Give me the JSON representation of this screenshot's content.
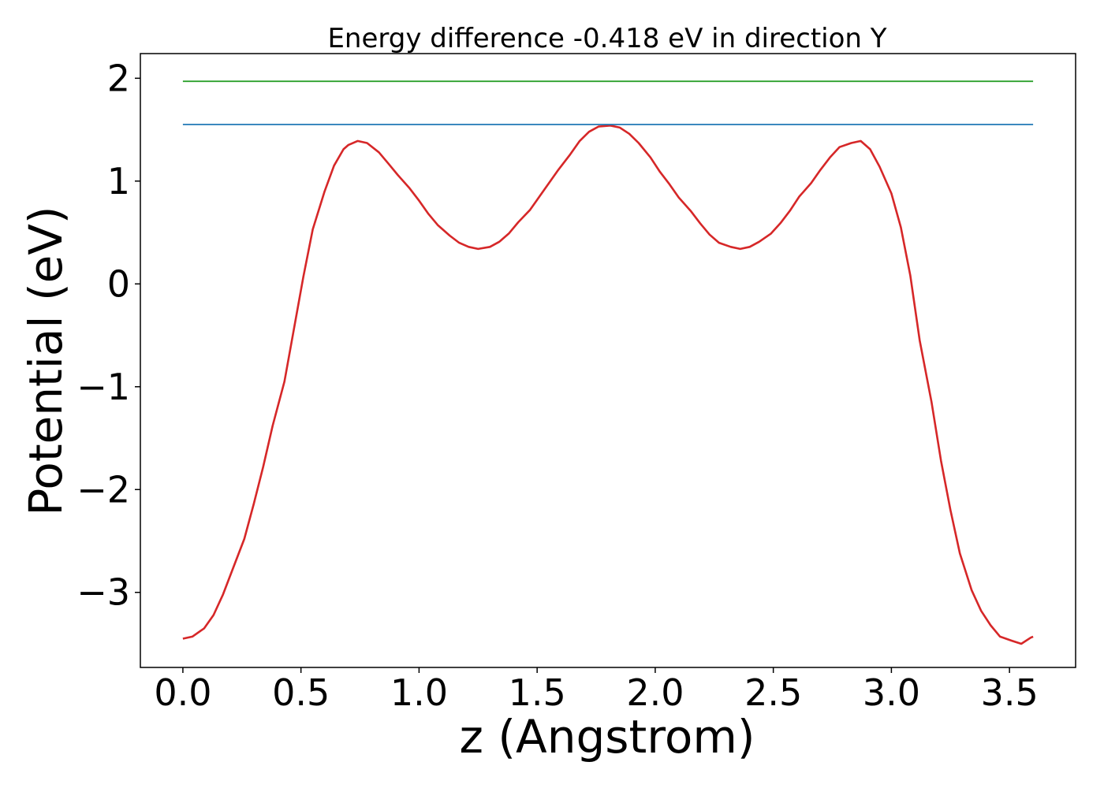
{
  "chart_data": {
    "type": "line",
    "title": "Energy difference -0.418 eV in direction Y",
    "xlabel": "z (Angstrom)",
    "ylabel": "Potential (eV)",
    "xlim": [
      -0.18,
      3.78
    ],
    "ylim": [
      -3.73,
      2.24
    ],
    "x_ticks": [
      0.0,
      0.5,
      1.0,
      1.5,
      2.0,
      2.5,
      3.0,
      3.5
    ],
    "x_tick_labels": [
      "0.0",
      "0.5",
      "1.0",
      "1.5",
      "2.0",
      "2.5",
      "3.0",
      "3.5"
    ],
    "y_ticks": [
      -3,
      -2,
      -1,
      0,
      1,
      2
    ],
    "y_tick_labels": [
      "−3",
      "−2",
      "−1",
      "0",
      "1",
      "2"
    ],
    "grid": false,
    "legend": "none",
    "series": [
      {
        "color": "#d62728",
        "x": [
          0.0,
          0.04,
          0.09,
          0.13,
          0.17,
          0.21,
          0.26,
          0.3,
          0.34,
          0.38,
          0.43,
          0.47,
          0.51,
          0.55,
          0.6,
          0.64,
          0.68,
          0.7,
          0.74,
          0.78,
          0.83,
          0.87,
          0.91,
          0.96,
          1.0,
          1.04,
          1.08,
          1.13,
          1.17,
          1.21,
          1.25,
          1.3,
          1.34,
          1.38,
          1.42,
          1.47,
          1.51,
          1.55,
          1.59,
          1.64,
          1.68,
          1.72,
          1.76,
          1.81,
          1.85,
          1.89,
          1.93,
          1.98,
          2.02,
          2.06,
          2.1,
          2.15,
          2.19,
          2.23,
          2.27,
          2.32,
          2.36,
          2.4,
          2.44,
          2.49,
          2.53,
          2.57,
          2.61,
          2.66,
          2.7,
          2.74,
          2.78,
          2.83,
          2.87,
          2.91,
          2.95,
          3.0,
          3.04,
          3.08,
          3.12,
          3.17,
          3.21,
          3.25,
          3.29,
          3.34,
          3.38,
          3.42,
          3.46,
          3.51,
          3.55,
          3.59,
          3.6
        ],
        "y": [
          -3.45,
          -3.43,
          -3.35,
          -3.22,
          -3.02,
          -2.78,
          -2.48,
          -2.14,
          -1.78,
          -1.38,
          -0.95,
          -0.44,
          0.07,
          0.53,
          0.9,
          1.15,
          1.31,
          1.35,
          1.39,
          1.37,
          1.28,
          1.17,
          1.06,
          0.93,
          0.81,
          0.68,
          0.57,
          0.47,
          0.4,
          0.36,
          0.34,
          0.36,
          0.41,
          0.49,
          0.6,
          0.72,
          0.85,
          0.98,
          1.11,
          1.26,
          1.39,
          1.48,
          1.53,
          1.54,
          1.52,
          1.46,
          1.37,
          1.23,
          1.09,
          0.97,
          0.84,
          0.71,
          0.59,
          0.48,
          0.4,
          0.36,
          0.34,
          0.36,
          0.41,
          0.49,
          0.59,
          0.71,
          0.85,
          0.98,
          1.11,
          1.23,
          1.33,
          1.37,
          1.39,
          1.31,
          1.14,
          0.88,
          0.55,
          0.08,
          -0.55,
          -1.15,
          -1.72,
          -2.2,
          -2.62,
          -2.98,
          -3.18,
          -3.32,
          -3.43,
          -3.47,
          -3.5,
          -3.44,
          -3.43
        ]
      },
      {
        "color": "#1f77b4",
        "x": [
          0.0,
          3.6
        ],
        "y": [
          1.55,
          1.55
        ]
      },
      {
        "color": "#2ca02c",
        "x": [
          0.0,
          3.6
        ],
        "y": [
          1.97,
          1.97
        ]
      }
    ]
  }
}
